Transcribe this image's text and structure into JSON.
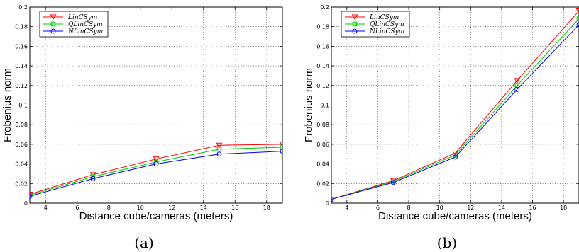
{
  "chart_data": [
    {
      "type": "line",
      "caption": "(a)",
      "xlabel": "Distance cube/cameras (meters)",
      "ylabel": "Frobenius norm",
      "xlim": [
        3,
        19
      ],
      "ylim": [
        0,
        0.2
      ],
      "xticks": [
        "4",
        "6",
        "8",
        "10",
        "12",
        "14",
        "16",
        "18"
      ],
      "yticks": [
        "0",
        "0.02",
        "0.04",
        "0.06",
        "0.08",
        "0.1",
        "0.12",
        "0.14",
        "0.16",
        "0.18",
        "0.2"
      ],
      "grid": true,
      "legend_position": "top-left",
      "x": [
        3,
        7,
        11,
        15,
        19
      ],
      "series": [
        {
          "name": "LinCSym",
          "color": "#ff0000",
          "marker": "triangle-down",
          "values": [
            0.009,
            0.029,
            0.045,
            0.059,
            0.06
          ]
        },
        {
          "name": "QLinCSym",
          "color": "#00cc00",
          "marker": "square",
          "values": [
            0.008,
            0.027,
            0.042,
            0.055,
            0.057
          ]
        },
        {
          "name": "NLinCSym",
          "color": "#0000ff",
          "marker": "circle",
          "values": [
            0.007,
            0.025,
            0.04,
            0.05,
            0.053
          ]
        }
      ]
    },
    {
      "type": "line",
      "caption": "(b)",
      "xlabel": "Distance cube/cameras (meters)",
      "ylabel": "Frobenius norm",
      "xlim": [
        3,
        19
      ],
      "ylim": [
        0,
        0.2
      ],
      "xticks": [
        "4",
        "6",
        "8",
        "10",
        "12",
        "14",
        "16",
        "18"
      ],
      "yticks": [
        "0",
        "0.02",
        "0.04",
        "0.06",
        "0.08",
        "0.1",
        "0.12",
        "0.14",
        "0.16",
        "0.18",
        "0.2"
      ],
      "grid": true,
      "legend_position": "top-left",
      "x": [
        3,
        7,
        11,
        15,
        19
      ],
      "series": [
        {
          "name": "LinCSym",
          "color": "#ff0000",
          "marker": "triangle-down",
          "values": [
            0.004,
            0.023,
            0.051,
            0.125,
            0.196
          ]
        },
        {
          "name": "QLinCSym",
          "color": "#00cc00",
          "marker": "square",
          "values": [
            0.004,
            0.022,
            0.049,
            0.12,
            0.188
          ]
        },
        {
          "name": "NLinCSym",
          "color": "#0000ff",
          "marker": "circle",
          "values": [
            0.004,
            0.021,
            0.047,
            0.116,
            0.182
          ]
        }
      ]
    }
  ]
}
